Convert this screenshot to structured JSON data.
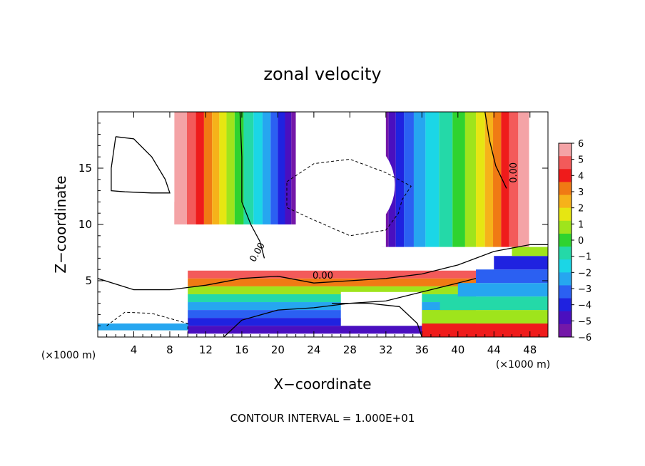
{
  "chart_data": {
    "type": "heatmap",
    "title": "zonal velocity",
    "xlabel": "X−coordinate",
    "ylabel": "Z−coordinate",
    "x_scale_note": "(×1000 m)",
    "y_scale_note": "(×1000 m)",
    "xlim": [
      0,
      50
    ],
    "ylim": [
      0,
      20
    ],
    "x_ticks": [
      4,
      8,
      12,
      16,
      20,
      24,
      28,
      32,
      36,
      40,
      44,
      48
    ],
    "y_ticks": [
      5,
      10,
      15
    ],
    "colorbar": {
      "labels": [
        "6",
        "5",
        "4",
        "3",
        "2",
        "1",
        "0",
        "−1",
        "−2",
        "−3",
        "−4",
        "−5",
        "−6"
      ],
      "min": -6,
      "max": 6,
      "colors": [
        "#f4a3a6",
        "#f35a5a",
        "#ef1b1b",
        "#f07a14",
        "#f6b21a",
        "#e6e612",
        "#9fe41c",
        "#2fd32f",
        "#24d9a8",
        "#1bd6e6",
        "#26a6f0",
        "#2b60f2",
        "#1f22e0",
        "#4a0fbf",
        "#7418a8"
      ]
    },
    "contour_labels": [
      "0.00",
      "0.00",
      "0.00"
    ],
    "contour_interval_text": "CONTOUR INTERVAL = 1.000E+01",
    "grid": false,
    "legend_placement": "right colorbar"
  }
}
